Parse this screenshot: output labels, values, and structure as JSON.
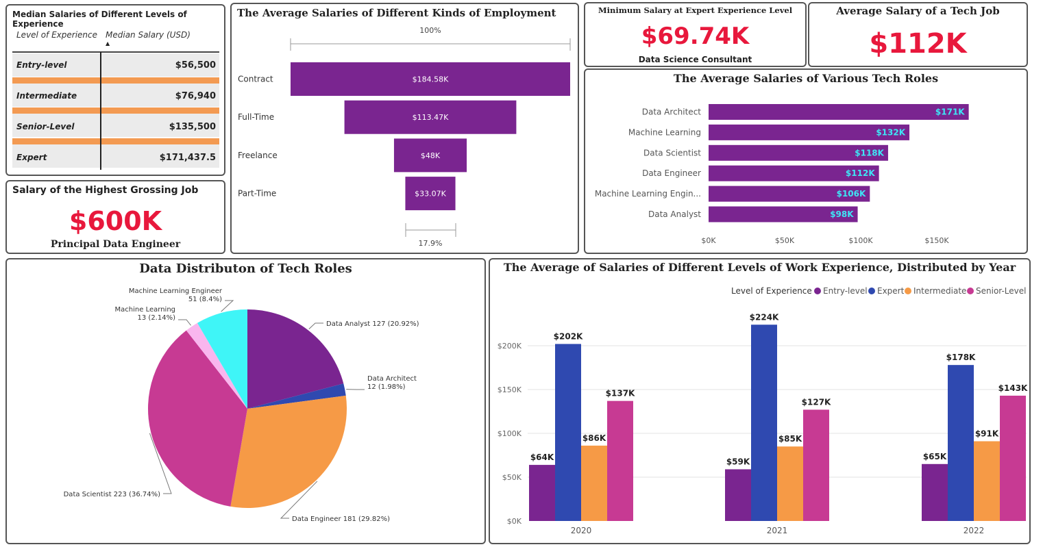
{
  "colors": {
    "purple": "#7a2590",
    "entry": "#7a2590",
    "expert": "#2f49b0",
    "intermediate": "#f69a46",
    "senior": "#c73a93",
    "kpi_red": "#e8183c",
    "bar_label_cyan": "#3ee6f5"
  },
  "median_table": {
    "title": "Median Salaries of Different Levels of Experience",
    "col_level": "Level of Experience",
    "col_salary": "Median Salary (USD)",
    "sort_glyph": "▲",
    "rows": [
      {
        "level": "Entry-level",
        "salary": "$56,500"
      },
      {
        "level": "Intermediate",
        "salary": "$76,940"
      },
      {
        "level": "Senior-Level",
        "salary": "$135,500"
      },
      {
        "level": "Expert",
        "salary": "$171,437.5"
      }
    ]
  },
  "highest_job": {
    "title": "Salary of the Highest Grossing Job",
    "value": "$600K",
    "subtitle": "Principal Data Engineer"
  },
  "min_expert": {
    "title": "Minimum Salary at Expert Experience Level",
    "value": "$69.74K",
    "subtitle": "Data Science Consultant"
  },
  "avg_tech": {
    "title": "Average Salary of a Tech Job",
    "value": "$112K"
  },
  "funnel": {
    "title": "The Average Salaries of Different Kinds of Employment",
    "top_label": "100%",
    "bottom_label": "17.9%"
  },
  "roles": {
    "title": "The Average Salaries of Various Tech Roles"
  },
  "pie": {
    "title": "Data Distributon of Tech Roles"
  },
  "grouped": {
    "title": "The Average of Salaries of Different Levels of Work Experience, Distributed by Year",
    "legend_title": "Level of Experience"
  },
  "chart_data": [
    {
      "type": "bar",
      "orientation": "funnel",
      "categories": [
        "Contract",
        "Full-Time",
        "Freelance",
        "Part-Time"
      ],
      "values": [
        184580,
        113470,
        48000,
        33070
      ],
      "data_labels": [
        "$184.58K",
        "$113.47K",
        "$48K",
        "$33.07K"
      ],
      "title": "The Average Salaries of Different Kinds of Employment"
    },
    {
      "type": "bar",
      "orientation": "horizontal",
      "categories": [
        "Data Architect",
        "Machine Learning",
        "Data Scientist",
        "Data Engineer",
        "Machine Learning Engin...",
        "Data Analyst"
      ],
      "values": [
        171000,
        132000,
        118000,
        112000,
        106000,
        98000
      ],
      "data_labels": [
        "$171K",
        "$132K",
        "$118K",
        "$112K",
        "$106K",
        "$98K"
      ],
      "xlim": [
        0,
        170000
      ],
      "xticks": [
        0,
        50000,
        100000,
        150000
      ],
      "xtick_labels": [
        "$0K",
        "$50K",
        "$100K",
        "$150K"
      ],
      "title": "The Average Salaries of Various Tech Roles"
    },
    {
      "type": "pie",
      "title": "Data Distributon of Tech Roles",
      "slices": [
        {
          "name": "Data Analyst",
          "value": 127,
          "label": "Data Analyst 127 (20.92%)",
          "color": "#7a2590"
        },
        {
          "name": "Data Architect",
          "value": 12,
          "label": "Data Architect 12 (1.98%)",
          "color": "#2f49b0"
        },
        {
          "name": "Data Engineer",
          "value": 181,
          "label": "Data Engineer 181 (29.82%)",
          "color": "#f69a46"
        },
        {
          "name": "Data Scientist",
          "value": 223,
          "label": "Data Scientist 223 (36.74%)",
          "color": "#c73a93"
        },
        {
          "name": "Machine Learning",
          "value": 13,
          "label": "Machine Learning 13 (2.14%)",
          "color": "#f9b6ee"
        },
        {
          "name": "Machine Learning Engineer",
          "value": 51,
          "label": "Machine Learning Engineer 51 (8.4%)",
          "color": "#3ff5f7"
        }
      ]
    },
    {
      "type": "bar",
      "orientation": "vertical",
      "title": "The Average of Salaries of Different Levels of Work Experience, Distributed by Year",
      "categories": [
        "2020",
        "2021",
        "2022"
      ],
      "legend_title": "Level of Experience",
      "legend_position": "top-right",
      "series": [
        {
          "name": "Entry-level",
          "values": [
            64000,
            59000,
            65000
          ],
          "labels": [
            "$64K",
            "$59K",
            "$65K"
          ],
          "color": "#7a2590"
        },
        {
          "name": "Expert",
          "values": [
            202000,
            224000,
            178000
          ],
          "labels": [
            "$202K",
            "$224K",
            "$178K"
          ],
          "color": "#2f49b0"
        },
        {
          "name": "Intermediate",
          "values": [
            86000,
            85000,
            91000
          ],
          "labels": [
            "$86K",
            "$85K",
            "$91K"
          ],
          "color": "#f69a46"
        },
        {
          "name": "Senior-Level",
          "values": [
            137000,
            127000,
            143000
          ],
          "labels": [
            "$137K",
            "$127K",
            "$143K"
          ],
          "color": "#c73a93"
        }
      ],
      "ylim": [
        0,
        230000
      ],
      "yticks": [
        0,
        50000,
        100000,
        150000,
        200000
      ],
      "ytick_labels": [
        "$0K",
        "$50K",
        "$100K",
        "$150K",
        "$200K"
      ],
      "grid": true
    }
  ]
}
